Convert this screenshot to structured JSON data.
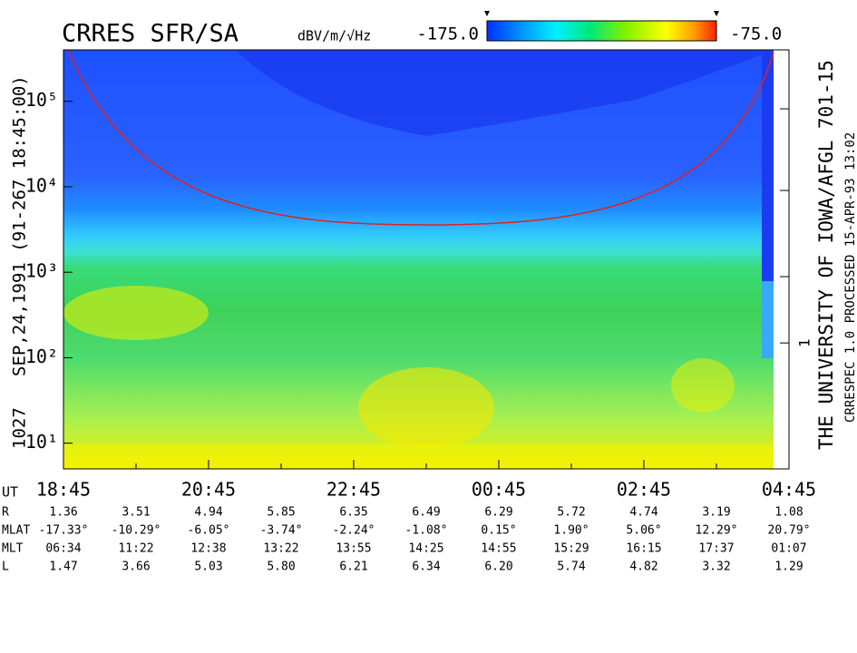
{
  "chart_data": {
    "type": "spectrogram",
    "title": "CRRES SFR/SA",
    "colorbar": {
      "unit": "dBV/m/√Hz",
      "range": [
        {
          "value": -175,
          "label": "-175.0"
        },
        {
          "value": -75,
          "label": "-75.0"
        }
      ]
    },
    "left_labels": [
      "SEP,24,1991   (91-267 18:45:00)",
      "1027"
    ],
    "right_labels": [
      "THE UNIVERSITY OF IOWA/AFGL 701-15",
      "CRRESPEC 1.0   PROCESSED 15-APR-93  13:02"
    ],
    "log_y": true,
    "ylim": [
      5,
      400000
    ],
    "yticks": [
      {
        "value": 10,
        "label": "10¹"
      },
      {
        "value": 100,
        "label": "10²"
      },
      {
        "value": 1000,
        "label": "10³"
      },
      {
        "value": 10000,
        "label": "10⁴"
      },
      {
        "value": 100000,
        "label": "10⁵"
      }
    ],
    "y2lim": [
      0.03,
      3500
    ],
    "y2ticks": [
      {
        "value": 1,
        "label": "1"
      }
    ],
    "x_axis_label": "UT",
    "categories": [
      "18:45",
      "20:45",
      "22:45",
      "00:45",
      "02:45",
      "04:45"
    ],
    "ephemeris": [
      {
        "label": "R",
        "values": [
          "1.36",
          "3.51",
          "4.94",
          "5.85",
          "6.35",
          "6.49",
          "6.29",
          "5.72",
          "4.74",
          "3.19",
          "1.08"
        ]
      },
      {
        "label": "MLAT",
        "values": [
          "-17.33°",
          "-10.29°",
          "-6.05°",
          "-3.74°",
          "-2.24°",
          "-1.08°",
          "0.15°",
          "1.90°",
          "5.06°",
          "12.29°",
          "20.79°"
        ]
      },
      {
        "label": "MLT",
        "values": [
          "06:34",
          "11:22",
          "12:38",
          "13:22",
          "13:55",
          "14:25",
          "14:55",
          "15:29",
          "16:15",
          "17:37",
          "01:07"
        ]
      },
      {
        "label": "L",
        "values": [
          "1.47",
          "3.66",
          "5.03",
          "5.80",
          "6.21",
          "6.34",
          "6.20",
          "5.74",
          "4.82",
          "3.32",
          "1.29"
        ]
      }
    ]
  }
}
